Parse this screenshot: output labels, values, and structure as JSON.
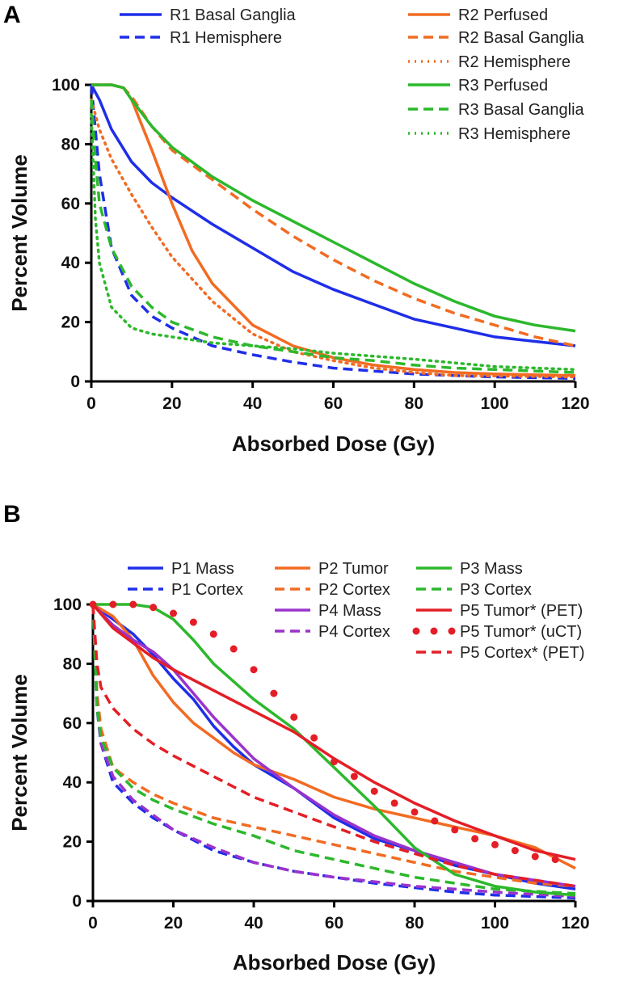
{
  "colors": {
    "blue": "#1f2ee8",
    "orange": "#f26b22",
    "green": "#2cb82c",
    "purple": "#9a33cc",
    "red": "#e41e26"
  },
  "chart_data": [
    {
      "panel": "A",
      "type": "line",
      "xlabel": "Absorbed Dose (Gy)",
      "ylabel": "Percent Volume",
      "xlim": [
        0,
        120
      ],
      "ylim": [
        0,
        100
      ],
      "xticks": [
        "0",
        "20",
        "40",
        "60",
        "80",
        "100",
        "120"
      ],
      "yticks": [
        "0",
        "20",
        "40",
        "60",
        "80",
        "100"
      ],
      "legend_placement": "top-right",
      "series": [
        {
          "name": "R1 Basal Ganglia",
          "color": "blue",
          "style": "solid",
          "x": [
            0,
            2,
            5,
            10,
            15,
            20,
            30,
            40,
            50,
            60,
            70,
            80,
            90,
            100,
            110,
            120
          ],
          "y": [
            100,
            95,
            85,
            74,
            67,
            62,
            53,
            45,
            37,
            31,
            26,
            21,
            18,
            15,
            13.5,
            12
          ]
        },
        {
          "name": "R1 Hemisphere",
          "color": "blue",
          "style": "dash",
          "x": [
            0,
            1,
            2,
            5,
            10,
            15,
            20,
            30,
            40,
            50,
            60,
            70,
            80,
            90,
            100,
            120
          ],
          "y": [
            100,
            85,
            70,
            45,
            29,
            22,
            18,
            12,
            9,
            6.5,
            4.5,
            3.5,
            2.5,
            2,
            1.5,
            1
          ]
        },
        {
          "name": "R2 Perfused",
          "color": "orange",
          "style": "solid",
          "x": [
            0,
            5,
            8,
            10,
            15,
            20,
            25,
            30,
            40,
            50,
            60,
            70,
            80,
            90,
            100,
            120
          ],
          "y": [
            100,
            100,
            99,
            95,
            78,
            60,
            44,
            33,
            19,
            12,
            8,
            5.5,
            4,
            3,
            2.5,
            2
          ]
        },
        {
          "name": "R2 Basal Ganglia",
          "color": "orange",
          "style": "dash",
          "x": [
            0,
            5,
            8,
            10,
            15,
            20,
            30,
            40,
            50,
            60,
            70,
            80,
            90,
            100,
            110,
            120
          ],
          "y": [
            100,
            100,
            99,
            96,
            86,
            78,
            68,
            58,
            49,
            41,
            34,
            28,
            23,
            19,
            15,
            12
          ]
        },
        {
          "name": "R2 Hemisphere",
          "color": "orange",
          "style": "dot",
          "x": [
            0,
            2,
            5,
            10,
            15,
            20,
            30,
            40,
            50,
            60,
            70,
            80,
            90,
            120
          ],
          "y": [
            95,
            85,
            75,
            63,
            52,
            42,
            27,
            16,
            10,
            7,
            4.5,
            3,
            2,
            1.5
          ]
        },
        {
          "name": "R3 Perfused",
          "color": "green",
          "style": "solid",
          "x": [
            0,
            5,
            8,
            10,
            15,
            20,
            30,
            40,
            50,
            60,
            70,
            80,
            90,
            100,
            110,
            120
          ],
          "y": [
            100,
            100,
            99,
            95,
            86,
            79,
            69,
            61,
            54,
            47,
            40,
            33,
            27,
            22,
            19,
            17
          ]
        },
        {
          "name": "R3 Basal Ganglia",
          "color": "green",
          "style": "dash",
          "x": [
            0,
            1,
            2,
            5,
            10,
            15,
            20,
            30,
            40,
            50,
            60,
            70,
            80,
            90,
            100,
            120
          ],
          "y": [
            95,
            75,
            60,
            45,
            32,
            25,
            20,
            15,
            12,
            10,
            8,
            7,
            5.5,
            4.5,
            4,
            3
          ]
        },
        {
          "name": "R3 Hemisphere",
          "color": "green",
          "style": "dot",
          "x": [
            0,
            1,
            2,
            5,
            10,
            15,
            20,
            30,
            40,
            50,
            60,
            80,
            100,
            120
          ],
          "y": [
            90,
            55,
            40,
            25,
            18,
            16,
            15,
            13,
            12,
            11,
            9.5,
            7.5,
            5,
            4
          ]
        }
      ]
    },
    {
      "panel": "B",
      "type": "line",
      "xlabel": "Absorbed Dose (Gy)",
      "ylabel": "Percent Volume",
      "xlim": [
        0,
        120
      ],
      "ylim": [
        0,
        100
      ],
      "xticks": [
        "0",
        "20",
        "40",
        "60",
        "80",
        "100",
        "120"
      ],
      "yticks": [
        "0",
        "20",
        "40",
        "60",
        "80",
        "100"
      ],
      "legend_placement": "top",
      "series": [
        {
          "name": "P1 Mass",
          "color": "blue",
          "style": "solid",
          "x": [
            0,
            5,
            10,
            15,
            20,
            25,
            30,
            35,
            40,
            50,
            60,
            70,
            80,
            90,
            100,
            110,
            120
          ],
          "y": [
            100,
            95,
            90,
            83,
            75,
            68,
            59,
            52,
            46,
            38,
            28,
            21,
            17,
            12,
            9,
            6,
            4
          ]
        },
        {
          "name": "P1 Cortex",
          "color": "blue",
          "style": "dash",
          "x": [
            0,
            1,
            2,
            5,
            10,
            15,
            20,
            30,
            40,
            50,
            60,
            70,
            80,
            90,
            100,
            120
          ],
          "y": [
            100,
            65,
            53,
            40,
            33,
            28,
            24,
            17,
            13,
            10,
            8,
            6,
            4.5,
            3,
            2,
            1
          ]
        },
        {
          "name": "P2 Tumor",
          "color": "orange",
          "style": "solid",
          "x": [
            0,
            5,
            10,
            15,
            20,
            25,
            30,
            35,
            40,
            50,
            60,
            70,
            80,
            90,
            100,
            110,
            120
          ],
          "y": [
            100,
            96,
            88,
            76,
            67,
            60,
            55,
            50,
            46,
            41,
            35,
            31,
            28,
            25,
            22,
            18,
            11
          ]
        },
        {
          "name": "P2 Cortex",
          "color": "orange",
          "style": "dash",
          "x": [
            0,
            1,
            2,
            5,
            10,
            15,
            20,
            30,
            40,
            50,
            60,
            70,
            80,
            90,
            100,
            110,
            120
          ],
          "y": [
            100,
            70,
            58,
            45,
            40,
            36,
            33,
            28,
            25,
            22,
            19,
            16,
            13,
            10,
            8,
            6,
            5
          ]
        },
        {
          "name": "P4 Mass",
          "color": "purple",
          "style": "solid",
          "x": [
            0,
            5,
            10,
            15,
            20,
            25,
            30,
            35,
            40,
            50,
            60,
            70,
            80,
            90,
            100,
            110,
            120
          ],
          "y": [
            100,
            93,
            88,
            84,
            78,
            70,
            62,
            55,
            48,
            38,
            29,
            22,
            17,
            13,
            9,
            7,
            5
          ]
        },
        {
          "name": "P4 Cortex",
          "color": "purple",
          "style": "dash",
          "x": [
            0,
            1,
            2,
            5,
            10,
            15,
            20,
            30,
            40,
            50,
            60,
            70,
            80,
            90,
            100,
            120
          ],
          "y": [
            100,
            66,
            53,
            42,
            34,
            29,
            24,
            18,
            13,
            10,
            8,
            6.5,
            5,
            4,
            3,
            1.5
          ]
        },
        {
          "name": "P3 Mass",
          "color": "green",
          "style": "solid",
          "x": [
            0,
            10,
            15,
            20,
            25,
            30,
            40,
            50,
            60,
            70,
            80,
            90,
            100,
            110,
            120
          ],
          "y": [
            100,
            100,
            99,
            95,
            88,
            80,
            68,
            58,
            45,
            32,
            18,
            9,
            5,
            3,
            2
          ]
        },
        {
          "name": "P3 Cortex",
          "color": "green",
          "style": "dash",
          "x": [
            0,
            1,
            2,
            5,
            10,
            15,
            20,
            30,
            40,
            50,
            60,
            70,
            80,
            90,
            100,
            120
          ],
          "y": [
            100,
            65,
            55,
            45,
            38,
            34,
            31,
            26,
            22,
            17,
            14,
            11,
            8,
            6,
            4,
            2.5
          ]
        },
        {
          "name": "P5 Tumor* (PET)",
          "color": "red",
          "style": "solid",
          "x": [
            0,
            5,
            10,
            15,
            20,
            30,
            40,
            50,
            60,
            70,
            80,
            90,
            100,
            110,
            120
          ],
          "y": [
            100,
            92,
            87,
            82,
            78,
            71,
            64,
            57,
            48,
            40,
            33,
            27,
            22,
            17,
            14
          ]
        },
        {
          "name": "P5 Tumor* (uCT)",
          "color": "red",
          "style": "bigdot",
          "x": [
            0,
            5,
            10,
            15,
            20,
            25,
            30,
            35,
            40,
            45,
            50,
            55,
            60,
            65,
            70,
            75,
            80,
            85,
            90,
            95,
            100,
            105,
            110,
            115
          ],
          "y": [
            100,
            100,
            100,
            99,
            97,
            94,
            90,
            85,
            78,
            70,
            62,
            55,
            47,
            42,
            37,
            33,
            30,
            27,
            24,
            21,
            19,
            17,
            15,
            14
          ]
        },
        {
          "name": "P5 Cortex* (PET)",
          "color": "red",
          "style": "dash",
          "x": [
            0,
            1,
            2,
            5,
            10,
            15,
            20,
            30,
            40,
            50,
            60,
            70,
            80,
            90,
            100,
            110,
            120
          ],
          "y": [
            100,
            80,
            72,
            65,
            58,
            53,
            49,
            42,
            35,
            30,
            25,
            20,
            16,
            12,
            9,
            7,
            5
          ]
        }
      ]
    }
  ]
}
